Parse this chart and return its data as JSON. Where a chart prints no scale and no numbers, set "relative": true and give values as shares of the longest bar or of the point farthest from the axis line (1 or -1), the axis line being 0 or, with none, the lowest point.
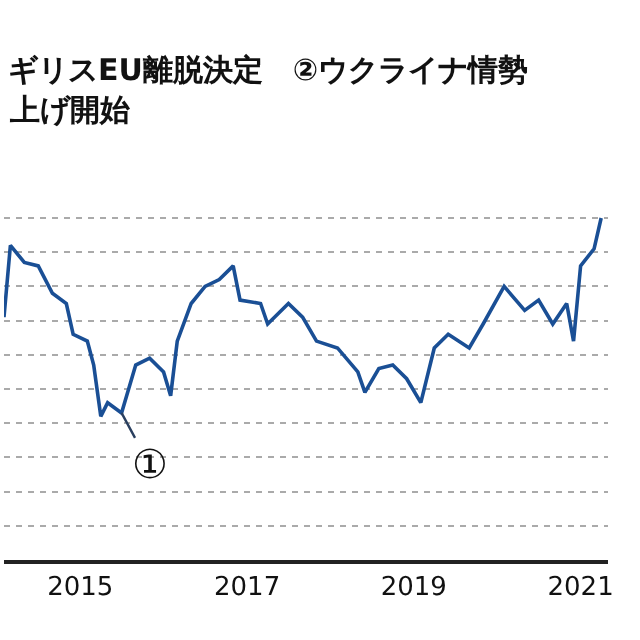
{
  "chart_data": {
    "type": "line",
    "relative": true,
    "annotations": [
      "ギリスEU離脱決定　②ウクライナ情勢",
      "上げ開始",
      {
        "text": "①",
        "x": "2015-07",
        "y": 0.43
      }
    ],
    "x": [
      "2014-02",
      "2014-03",
      "2014-05",
      "2014-07",
      "2014-09",
      "2014-11",
      "2014-12",
      "2015-02",
      "2015-03",
      "2015-04",
      "2015-05",
      "2015-07",
      "2015-09",
      "2015-11",
      "2016-01",
      "2016-02",
      "2016-03",
      "2016-05",
      "2016-07",
      "2016-09",
      "2016-11",
      "2016-12",
      "2017-03",
      "2017-04",
      "2017-07",
      "2017-09",
      "2017-11",
      "2018-02",
      "2018-05",
      "2018-06",
      "2018-08",
      "2018-10",
      "2018-12",
      "2019-02",
      "2019-04",
      "2019-06",
      "2019-09",
      "2019-11",
      "2020-02",
      "2020-05",
      "2020-07",
      "2020-09",
      "2020-11",
      "2020-12",
      "2021-01",
      "2021-03",
      "2021-04"
    ],
    "series": [
      {
        "color": "#1a4f95",
        "values": [
          0.71,
          0.92,
          0.87,
          0.86,
          0.78,
          0.75,
          0.66,
          0.64,
          0.57,
          0.42,
          0.46,
          0.43,
          0.57,
          0.59,
          0.55,
          0.48,
          0.64,
          0.75,
          0.8,
          0.82,
          0.86,
          0.76,
          0.75,
          0.69,
          0.75,
          0.71,
          0.64,
          0.62,
          0.55,
          0.49,
          0.56,
          0.57,
          0.53,
          0.46,
          0.62,
          0.66,
          0.62,
          0.69,
          0.8,
          0.73,
          0.76,
          0.69,
          0.75,
          0.64,
          0.86,
          0.91,
          1
        ]
      }
    ],
    "xlim": [
      "2014-02",
      "2021-05"
    ],
    "xticks": [
      {
        "value": "2015",
        "label": "2015"
      },
      {
        "value": "2017",
        "label": "2017"
      },
      {
        "value": "2019",
        "label": "2019"
      },
      {
        "value": "2021",
        "label": "2021"
      }
    ],
    "grid": "y",
    "tick_labels": "x",
    "marker": "none",
    "line_style": "solid"
  }
}
